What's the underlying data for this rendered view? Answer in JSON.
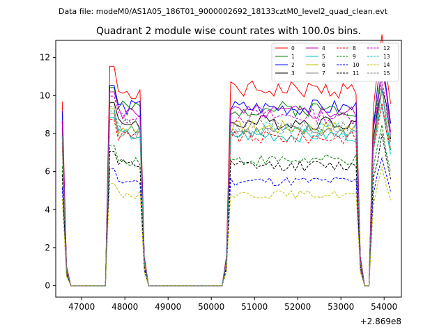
{
  "suptitle": "Data file: modeM0/AS1A05_186T01_9000002692_18133cztM0_level2_quad_clean.evt",
  "chart_data": {
    "type": "line",
    "title": "Quadrant 2 module wise count rates with 100.0s bins.",
    "xlabel": "",
    "ylabel": "",
    "x_offset_label": "+2.869e8",
    "xlim": [
      46400,
      54400
    ],
    "ylim": [
      -0.6,
      12.9
    ],
    "x_ticks": [
      47000,
      48000,
      49000,
      50000,
      51000,
      52000,
      53000,
      54000
    ],
    "y_ticks": [
      0,
      2,
      4,
      6,
      8,
      10,
      12
    ],
    "x_tick_labels": [
      "47000",
      "48000",
      "49000",
      "50000",
      "51000",
      "52000",
      "53000",
      "54000"
    ],
    "y_tick_labels": [
      "0",
      "2",
      "4",
      "6",
      "8",
      "10",
      "12"
    ],
    "grid": false,
    "legend_placement": "top-right",
    "series": [
      {
        "name": "0",
        "color": "#ff0000",
        "dash": "solid",
        "level": 10.3
      },
      {
        "name": "1",
        "color": "#008000",
        "dash": "solid",
        "level": 9.3
      },
      {
        "name": "2",
        "color": "#0000ff",
        "dash": "solid",
        "level": 9.4
      },
      {
        "name": "3",
        "color": "#000000",
        "dash": "solid",
        "level": 8.6
      },
      {
        "name": "4",
        "color": "#bf00bf",
        "dash": "solid",
        "level": 9.1
      },
      {
        "name": "5",
        "color": "#00bfbf",
        "dash": "solid",
        "level": 7.9
      },
      {
        "name": "6",
        "color": "#bfbf00",
        "dash": "solid",
        "level": 8.3
      },
      {
        "name": "7",
        "color": "#808080",
        "dash": "solid",
        "level": 8.1
      },
      {
        "name": "8",
        "color": "#ff0000",
        "dash": "dashed",
        "level": 7.8
      },
      {
        "name": "9",
        "color": "#008000",
        "dash": "dashed",
        "level": 6.6
      },
      {
        "name": "10",
        "color": "#0000ff",
        "dash": "dashed",
        "level": 5.5
      },
      {
        "name": "11",
        "color": "#000000",
        "dash": "dashed",
        "level": 6.3
      },
      {
        "name": "12",
        "color": "#bf00bf",
        "dash": "dashed",
        "level": 8.9
      },
      {
        "name": "13",
        "color": "#00bfbf",
        "dash": "dashed",
        "level": 8.2
      },
      {
        "name": "14",
        "color": "#bfbf00",
        "dash": "dashed",
        "level": 4.8
      },
      {
        "name": "15",
        "color": "#808080",
        "dash": "dashed",
        "level": 8.4
      }
    ],
    "segments": [
      {
        "x_start": 46550,
        "x_end": 47350,
        "shape": "decay"
      },
      {
        "x_start": 47650,
        "x_end": 48450,
        "shape": "plateau"
      },
      {
        "x_start": 50350,
        "x_end": 53450,
        "shape": "plateau"
      },
      {
        "x_start": 53750,
        "x_end": 54150,
        "shape": "peak"
      }
    ]
  }
}
